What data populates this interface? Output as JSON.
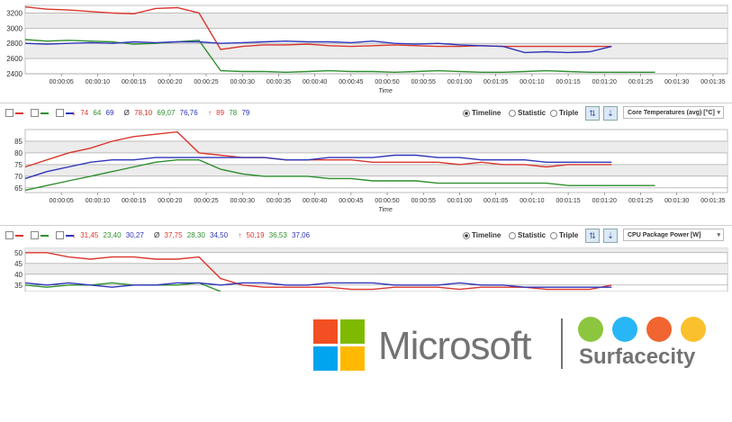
{
  "colors": {
    "red": "#d9372e",
    "green": "#2f8f2f",
    "blue": "#2f35b8"
  },
  "x_ticks": [
    "00:00:05",
    "00:00:10",
    "00:00:15",
    "00:00:20",
    "00:00:25",
    "00:00:30",
    "00:00:35",
    "00:00:40",
    "00:00:45",
    "00:00:50",
    "00:00:55",
    "00:01:00",
    "00:01:05",
    "00:01:10",
    "00:01:15",
    "00:01:20",
    "00:01:25",
    "00:01:30",
    "00:01:35"
  ],
  "x_axis_label": "Time",
  "toolbar2": {
    "cur_label": "↓ 74 64 69",
    "cur": [
      "74",
      "64",
      "69"
    ],
    "avg": [
      "78,10",
      "69,07",
      "76,76"
    ],
    "max": [
      "89",
      "78",
      "79"
    ],
    "mode_timeline": "Timeline",
    "mode_statistic": "Statistic",
    "mode_triple": "Triple",
    "sensor": "Core Temperatures (avg) [°C]"
  },
  "toolbar3": {
    "cur": [
      "31,45",
      "23,40",
      "30,27"
    ],
    "avg": [
      "37,75",
      "28,30",
      "34,50"
    ],
    "max": [
      "50,19",
      "36,53",
      "37,06"
    ],
    "mode_timeline": "Timeline",
    "mode_statistic": "Statistic",
    "mode_triple": "Triple",
    "sensor": "CPU Package Power [W]"
  },
  "symbols": {
    "cur": "↓",
    "avg": "Ø",
    "max": "↑"
  },
  "logos": {
    "microsoft": "Microsoft",
    "surfacecity": "Surfacecity"
  },
  "chart_data": [
    {
      "type": "line",
      "title": "",
      "xlabel": "Time",
      "ylabel": "",
      "ylim": [
        2400,
        3300
      ],
      "yticks": [
        "2400",
        "2600",
        "2800",
        "3000",
        "3200"
      ],
      "x": [
        0,
        3,
        6,
        9,
        12,
        15,
        18,
        21,
        24,
        27,
        30,
        33,
        36,
        39,
        42,
        45,
        48,
        51,
        54,
        57,
        60,
        63,
        66,
        69,
        72,
        75,
        78,
        81,
        84,
        87
      ],
      "series": [
        {
          "color": "red",
          "values": [
            3280,
            3250,
            3240,
            3220,
            3200,
            3190,
            3260,
            3270,
            3200,
            2720,
            2760,
            2780,
            2780,
            2790,
            2770,
            2760,
            2770,
            2780,
            2770,
            2760,
            2760,
            2770,
            2760,
            2760,
            2760,
            2760,
            2760,
            2760,
            null,
            null
          ]
        },
        {
          "color": "green",
          "values": [
            2850,
            2830,
            2840,
            2830,
            2820,
            2790,
            2800,
            2820,
            2840,
            2440,
            2430,
            2430,
            2420,
            2430,
            2440,
            2430,
            2430,
            2420,
            2430,
            2440,
            2430,
            2420,
            2420,
            2430,
            2440,
            2430,
            2420,
            2420,
            2420,
            2420
          ]
        },
        {
          "color": "blue",
          "values": [
            2800,
            2790,
            2800,
            2810,
            2800,
            2820,
            2810,
            2820,
            2820,
            2800,
            2810,
            2820,
            2830,
            2820,
            2820,
            2810,
            2830,
            2800,
            2790,
            2800,
            2780,
            2770,
            2760,
            2680,
            2690,
            2680,
            2690,
            2760,
            null,
            null
          ]
        }
      ]
    },
    {
      "type": "line",
      "title": "",
      "xlabel": "Time",
      "ylabel": "Core Temperatures (avg) [°C]",
      "ylim": [
        63,
        90
      ],
      "yticks": [
        "65",
        "70",
        "75",
        "80",
        "85"
      ],
      "x": [
        0,
        3,
        6,
        9,
        12,
        15,
        18,
        21,
        24,
        27,
        30,
        33,
        36,
        39,
        42,
        45,
        48,
        51,
        54,
        57,
        60,
        63,
        66,
        69,
        72,
        75,
        78,
        81,
        84,
        87
      ],
      "series": [
        {
          "color": "red",
          "values": [
            74,
            77,
            80,
            82,
            85,
            87,
            88,
            89,
            80,
            79,
            78,
            78,
            77,
            77,
            77,
            77,
            76,
            76,
            76,
            76,
            75,
            76,
            75,
            75,
            74,
            75,
            75,
            75,
            null,
            null
          ]
        },
        {
          "color": "green",
          "values": [
            64,
            66,
            68,
            70,
            72,
            74,
            76,
            77,
            77,
            73,
            71,
            70,
            70,
            70,
            69,
            69,
            68,
            68,
            68,
            67,
            67,
            67,
            67,
            67,
            67,
            66,
            66,
            66,
            66,
            66
          ]
        },
        {
          "color": "blue",
          "values": [
            69,
            72,
            74,
            76,
            77,
            77,
            78,
            78,
            78,
            78,
            78,
            78,
            77,
            77,
            78,
            78,
            78,
            79,
            79,
            78,
            78,
            77,
            77,
            77,
            76,
            76,
            76,
            76,
            null,
            null
          ]
        }
      ]
    },
    {
      "type": "line",
      "title": "",
      "xlabel": "",
      "ylabel": "CPU Package Power [W]",
      "ylim": [
        32,
        52
      ],
      "yticks": [
        "35",
        "40",
        "45",
        "50"
      ],
      "x": [
        0,
        3,
        6,
        9,
        12,
        15,
        18,
        21,
        24,
        27,
        30,
        33,
        36,
        39,
        42,
        45,
        48,
        51,
        54,
        57,
        60,
        63,
        66,
        69,
        72,
        75,
        78,
        81,
        84,
        87
      ],
      "series": [
        {
          "color": "red",
          "values": [
            50,
            50,
            48,
            47,
            48,
            48,
            47,
            47,
            48,
            38,
            35,
            34,
            34,
            34,
            34,
            33,
            33,
            34,
            34,
            34,
            33,
            34,
            34,
            34,
            33,
            33,
            33,
            35,
            null,
            null
          ]
        },
        {
          "color": "green",
          "values": [
            35,
            34,
            35,
            35,
            36,
            35,
            35,
            35,
            36,
            32,
            null,
            null,
            null,
            null,
            null,
            null,
            null,
            null,
            null,
            null,
            null,
            null,
            null,
            null,
            null,
            null,
            null,
            null,
            null,
            null
          ]
        },
        {
          "color": "blue",
          "values": [
            36,
            35,
            36,
            35,
            34,
            35,
            35,
            36,
            36,
            35,
            36,
            36,
            35,
            35,
            36,
            36,
            36,
            35,
            35,
            35,
            36,
            35,
            35,
            34,
            34,
            34,
            34,
            34,
            null,
            null
          ]
        }
      ]
    }
  ]
}
